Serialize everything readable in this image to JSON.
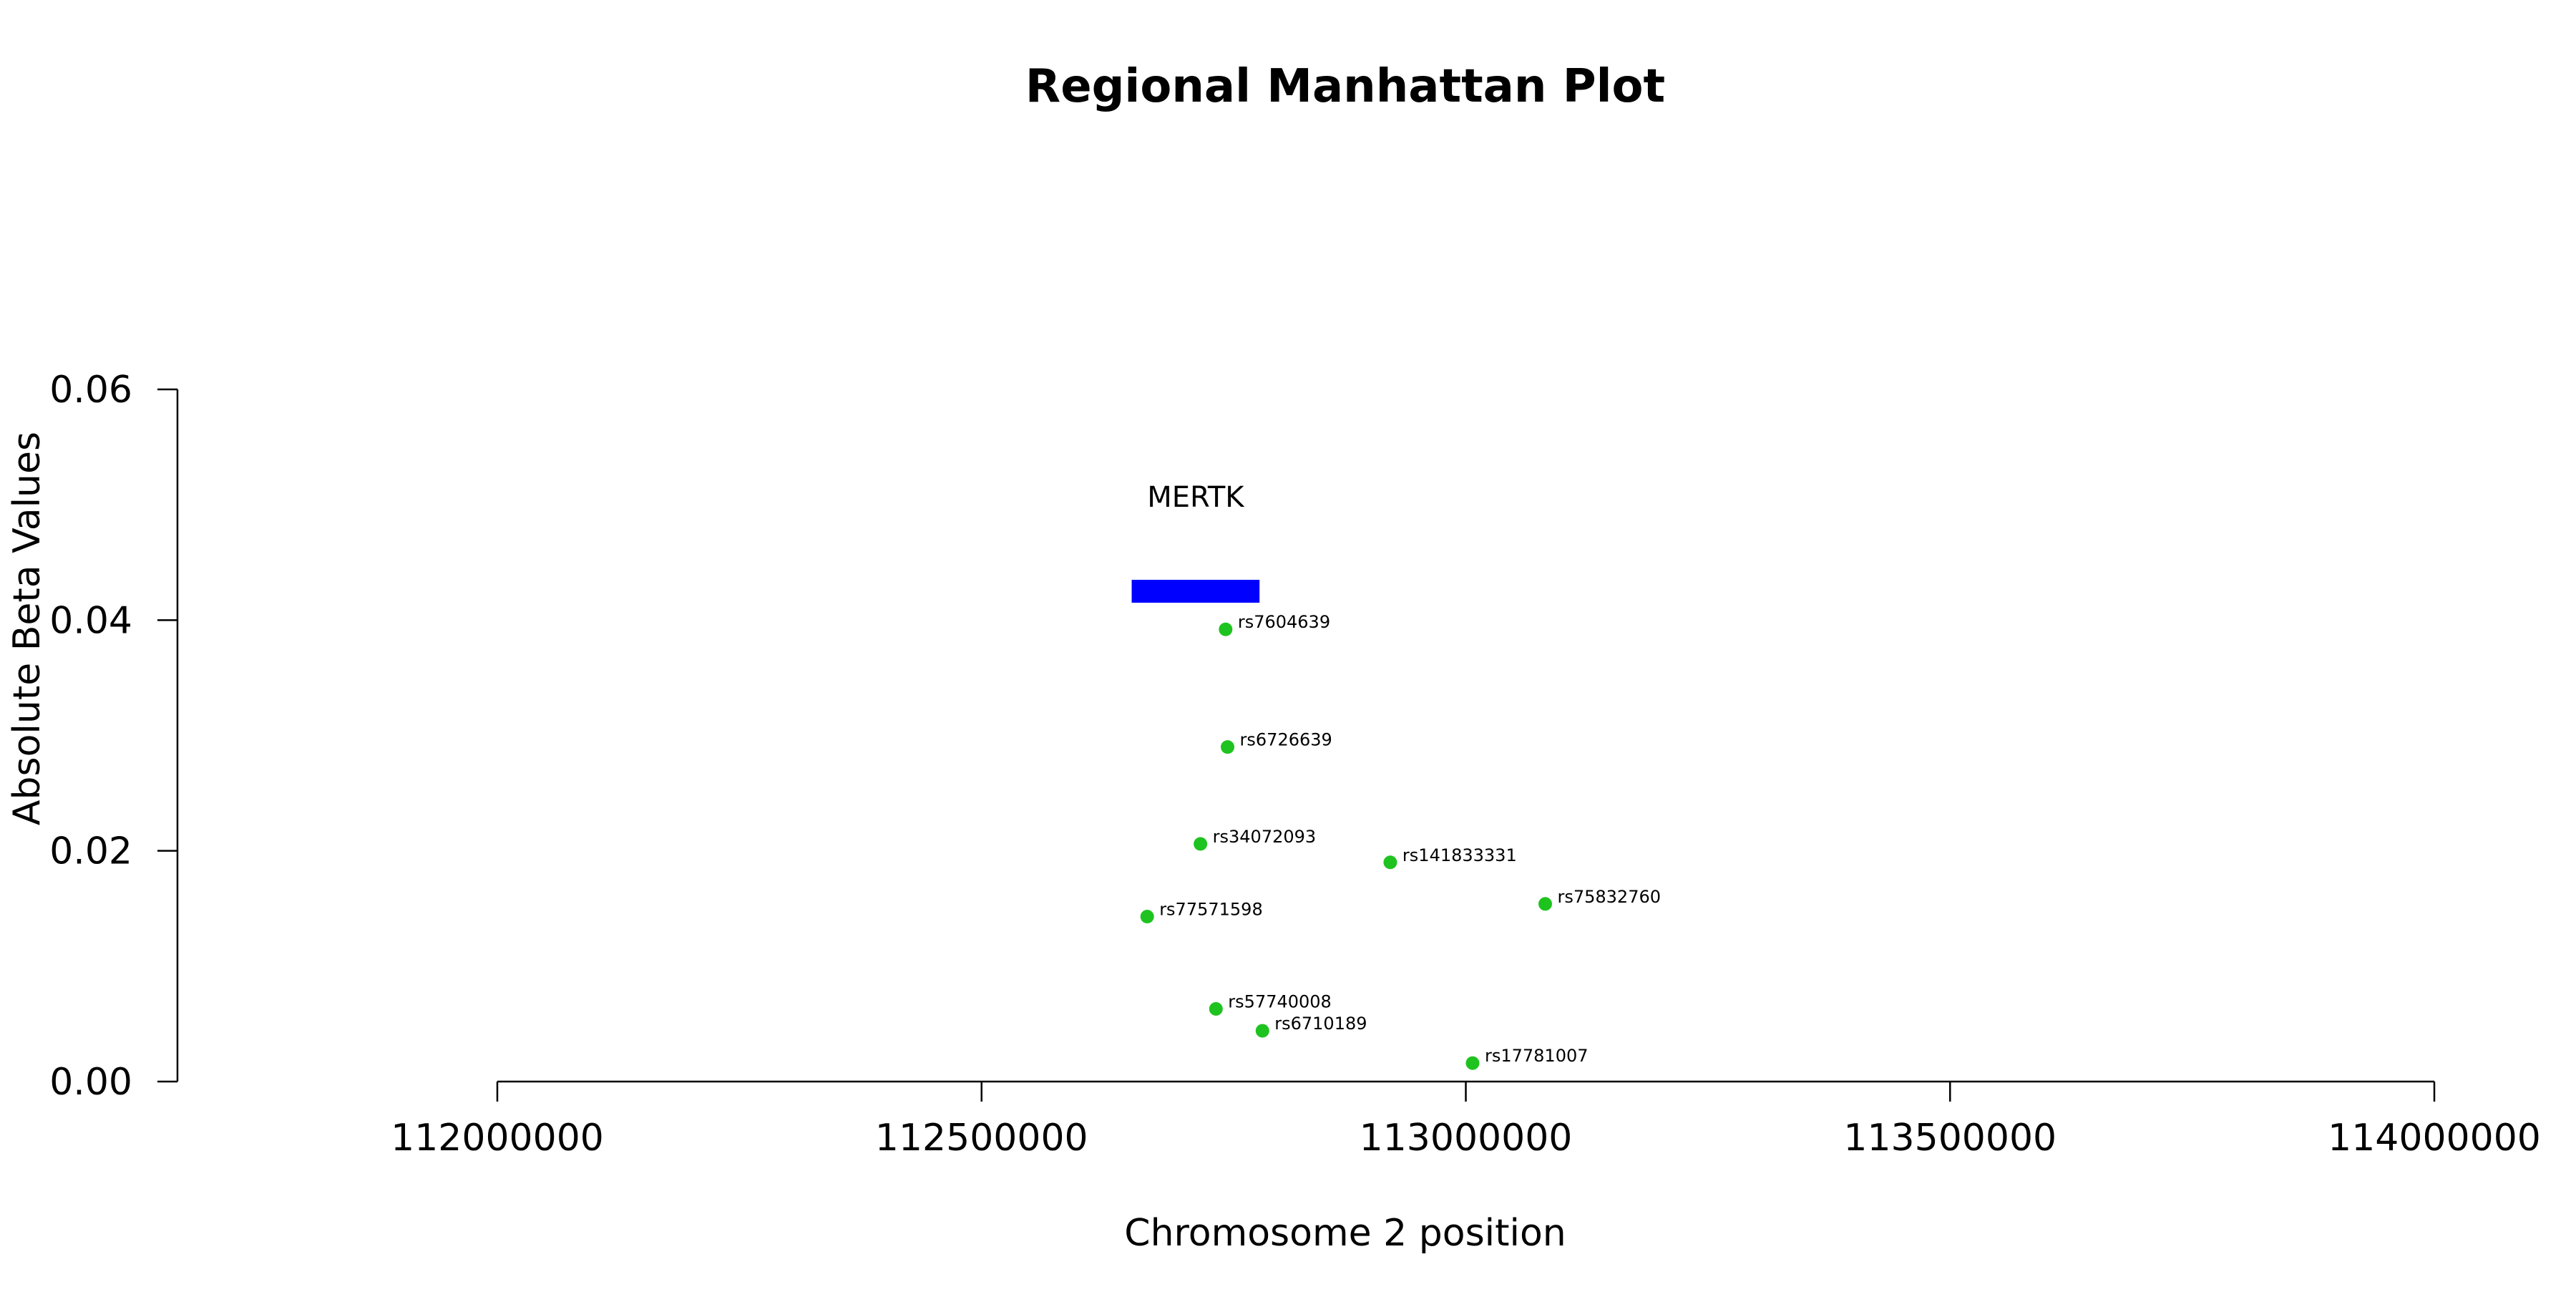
{
  "chart_data": {
    "type": "scatter",
    "title": "Regional Manhattan Plot",
    "xlabel": "Chromosome 2 position",
    "ylabel": "Absolute Beta Values",
    "xlim": [
      112000000,
      114000000
    ],
    "ylim": [
      0,
      0.06
    ],
    "xticks": [
      "112000000",
      "112500000",
      "113000000",
      "113500000",
      "114000000"
    ],
    "yticks": [
      "0.00",
      "0.02",
      "0.04",
      "0.06"
    ],
    "grid": false,
    "point_color": "#1fc31f",
    "gene_color": "#0000ff",
    "genes": [
      {
        "name": "MERTK",
        "start": 112655000,
        "end": 112787000,
        "y": 0.0425
      }
    ],
    "points": [
      {
        "label": "rs7604639",
        "x": 112752000,
        "y": 0.0392
      },
      {
        "label": "rs6726639",
        "x": 112754000,
        "y": 0.029
      },
      {
        "label": "rs34072093",
        "x": 112726000,
        "y": 0.0206
      },
      {
        "label": "rs141833331",
        "x": 112922000,
        "y": 0.019
      },
      {
        "label": "rs75832760",
        "x": 113082000,
        "y": 0.0154
      },
      {
        "label": "rs77571598",
        "x": 112671000,
        "y": 0.0143
      },
      {
        "label": "rs57740008",
        "x": 112742000,
        "y": 0.0063
      },
      {
        "label": "rs6710189",
        "x": 112790000,
        "y": 0.0044
      },
      {
        "label": "rs17781007",
        "x": 113007000,
        "y": 0.0016
      }
    ]
  }
}
